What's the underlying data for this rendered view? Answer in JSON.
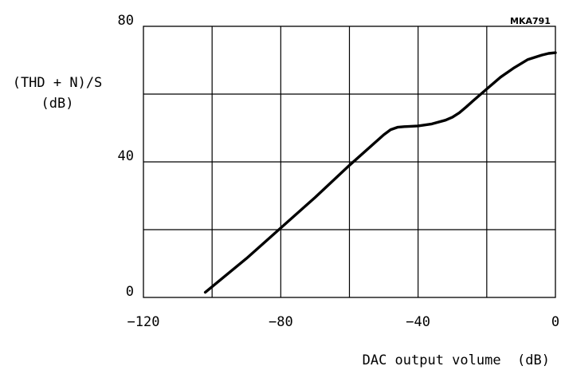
{
  "figure_id": "MKA791",
  "chart_data": {
    "type": "line",
    "title": "",
    "xlabel": "DAC output volume  (dB)",
    "ylabel_line1": "(THD + N)/S",
    "ylabel_line2": "(dB)",
    "xlim": [
      -120,
      0
    ],
    "ylim": [
      0,
      80
    ],
    "x_ticks": [
      -120,
      -80,
      -40,
      0
    ],
    "x_tick_labels": [
      "−120",
      "−80",
      "−40",
      "0"
    ],
    "y_ticks": [
      0,
      40,
      80
    ],
    "y_tick_labels": [
      "0",
      "40",
      "80"
    ],
    "grid": true,
    "x_grid_step": 20,
    "y_grid_step": 20,
    "line_color": "#000000",
    "series": [
      {
        "x": [
          -102,
          -90,
          -80,
          -70,
          -60,
          -50,
          -48,
          -46,
          -44,
          -40,
          -36,
          -32,
          -30,
          -28,
          -26,
          -24,
          -20,
          -16,
          -12,
          -8,
          -4,
          -2,
          0
        ],
        "values": [
          1.5,
          11.5,
          20.5,
          29.5,
          39,
          48,
          49.5,
          50.2,
          50.4,
          50.6,
          51.2,
          52.3,
          53.2,
          54.5,
          56.2,
          58,
          61.5,
          65,
          67.8,
          70.2,
          71.5,
          72,
          72.2
        ]
      }
    ]
  }
}
